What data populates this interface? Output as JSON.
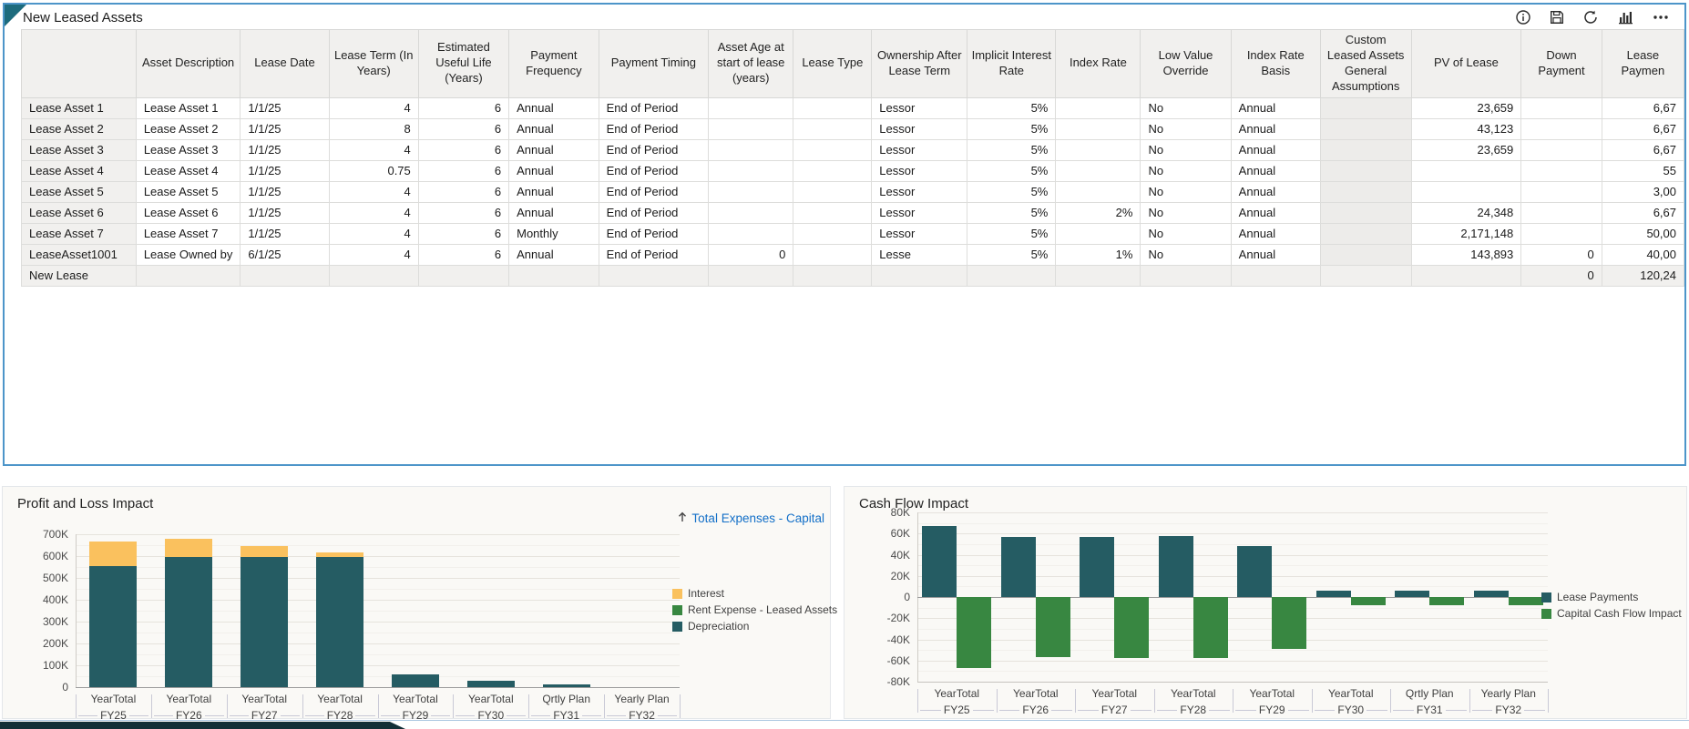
{
  "panel": {
    "title": "New Leased Assets",
    "toolbar_icons": [
      "info",
      "save",
      "refresh",
      "chart",
      "more"
    ]
  },
  "table": {
    "columns": [
      "",
      "Asset Description",
      "Lease Date",
      "Lease Term (In Years)",
      "Estimated Useful Life (Years)",
      "Payment Frequency",
      "Payment Timing",
      "Asset Age at start of lease (years)",
      "Lease Type",
      "Ownership After Lease Term",
      "Implicit Interest Rate",
      "Index Rate",
      "Low Value Override",
      "Index Rate Basis",
      "Custom Leased Assets General Assumptions",
      "PV of Lease",
      "Down Payment",
      "Lease Paymen"
    ],
    "rows": [
      {
        "header": "Lease Asset 1",
        "cells": [
          "Lease Asset 1",
          "1/1/25",
          "4",
          "6",
          "Annual",
          "End of Period",
          "",
          "",
          "Lessor",
          "5%",
          "",
          "No",
          "Annual",
          "",
          "23,659",
          "",
          "6,67"
        ]
      },
      {
        "header": "Lease Asset 2",
        "cells": [
          "Lease Asset 2",
          "1/1/25",
          "8",
          "6",
          "Annual",
          "End of Period",
          "",
          "",
          "Lessor",
          "5%",
          "",
          "No",
          "Annual",
          "",
          "43,123",
          "",
          "6,67"
        ]
      },
      {
        "header": "Lease Asset 3",
        "cells": [
          "Lease Asset 3",
          "1/1/25",
          "4",
          "6",
          "Annual",
          "End of Period",
          "",
          "",
          "Lessor",
          "5%",
          "",
          "No",
          "Annual",
          "",
          "23,659",
          "",
          "6,67"
        ]
      },
      {
        "header": "Lease Asset 4",
        "cells": [
          "Lease Asset 4",
          "1/1/25",
          "0.75",
          "6",
          "Annual",
          "End of Period",
          "",
          "",
          "Lessor",
          "5%",
          "",
          "No",
          "Annual",
          "",
          "",
          "",
          "55"
        ]
      },
      {
        "header": "Lease Asset 5",
        "cells": [
          "Lease Asset 5",
          "1/1/25",
          "4",
          "6",
          "Annual",
          "End of Period",
          "",
          "",
          "Lessor",
          "5%",
          "",
          "No",
          "Annual",
          "",
          "",
          "",
          "3,00"
        ]
      },
      {
        "header": "Lease Asset 6",
        "cells": [
          "Lease Asset 6",
          "1/1/25",
          "4",
          "6",
          "Annual",
          "End of Period",
          "",
          "",
          "Lessor",
          "5%",
          "2%",
          "No",
          "Annual",
          "",
          "24,348",
          "",
          "6,67"
        ]
      },
      {
        "header": "Lease Asset 7",
        "cells": [
          "Lease Asset 7",
          "1/1/25",
          "4",
          "6",
          "Monthly",
          "End of Period",
          "",
          "",
          "Lessor",
          "5%",
          "",
          "No",
          "Annual",
          "",
          "2,171,148",
          "",
          "50,00"
        ]
      },
      {
        "header": "LeaseAsset1001",
        "cells": [
          "Lease Owned by",
          "6/1/25",
          "4",
          "6",
          "Annual",
          "End of Period",
          "0",
          "",
          "Lesse",
          "5%",
          "1%",
          "No",
          "Annual",
          "",
          "143,893",
          "0",
          "40,00"
        ]
      },
      {
        "header": "New Lease",
        "cells": [
          "",
          "",
          "",
          "",
          "",
          "",
          "",
          "",
          "",
          "",
          "",
          "",
          "",
          "",
          "",
          "0",
          "120,24"
        ]
      }
    ]
  },
  "chart_data": [
    {
      "type": "bar",
      "stacked": true,
      "title": "Profit and Loss Impact",
      "link": "Total Expenses - Capital",
      "categories": [
        {
          "period": "YearTotal",
          "year": "FY25"
        },
        {
          "period": "YearTotal",
          "year": "FY26"
        },
        {
          "period": "YearTotal",
          "year": "FY27"
        },
        {
          "period": "YearTotal",
          "year": "FY28"
        },
        {
          "period": "YearTotal",
          "year": "FY29"
        },
        {
          "period": "YearTotal",
          "year": "FY30"
        },
        {
          "period": "Qrtly Plan",
          "year": "FY31"
        },
        {
          "period": "Yearly Plan",
          "year": "FY32"
        }
      ],
      "series": [
        {
          "name": "Interest",
          "color": "#FAC15E",
          "values": [
            110,
            85,
            52,
            22,
            0,
            0,
            0,
            0
          ]
        },
        {
          "name": "Rent Expense - Leased Assets",
          "color": "#388741",
          "values": [
            0,
            0,
            0,
            0,
            0,
            0,
            0,
            0
          ]
        },
        {
          "name": "Depreciation",
          "color": "#255C63",
          "values": [
            555,
            595,
            595,
            595,
            57,
            30,
            13,
            0
          ]
        }
      ],
      "unit": "K",
      "ylim": [
        0,
        700
      ],
      "ytick": 100,
      "grid": true,
      "legend_position": "right"
    },
    {
      "type": "bar",
      "stacked": false,
      "title": "Cash Flow Impact",
      "categories": [
        {
          "period": "YearTotal",
          "year": "FY25"
        },
        {
          "period": "YearTotal",
          "year": "FY26"
        },
        {
          "period": "YearTotal",
          "year": "FY27"
        },
        {
          "period": "YearTotal",
          "year": "FY28"
        },
        {
          "period": "YearTotal",
          "year": "FY29"
        },
        {
          "period": "YearTotal",
          "year": "FY30"
        },
        {
          "period": "Qrtly Plan",
          "year": "FY31"
        },
        {
          "period": "Yearly Plan",
          "year": "FY32"
        }
      ],
      "series": [
        {
          "name": "Lease Payments",
          "color": "#255C63",
          "values": [
            67,
            57,
            57,
            58,
            48,
            6,
            6,
            6
          ]
        },
        {
          "name": "Capital Cash Flow Impact",
          "color": "#388741",
          "values": [
            -67,
            -57,
            -58,
            -58,
            -49,
            -8,
            -8,
            -8
          ]
        }
      ],
      "unit": "K",
      "ylim": [
        -80,
        80
      ],
      "ytick": 20,
      "grid": true,
      "legend_position": "right"
    }
  ],
  "colors": {
    "teal": "#255C63",
    "yellow": "#FAC15E",
    "green": "#388741",
    "link_blue": "#1470C8",
    "panel_border_blue": "#4D95C9",
    "corner_teal": "#1D6B7D"
  }
}
